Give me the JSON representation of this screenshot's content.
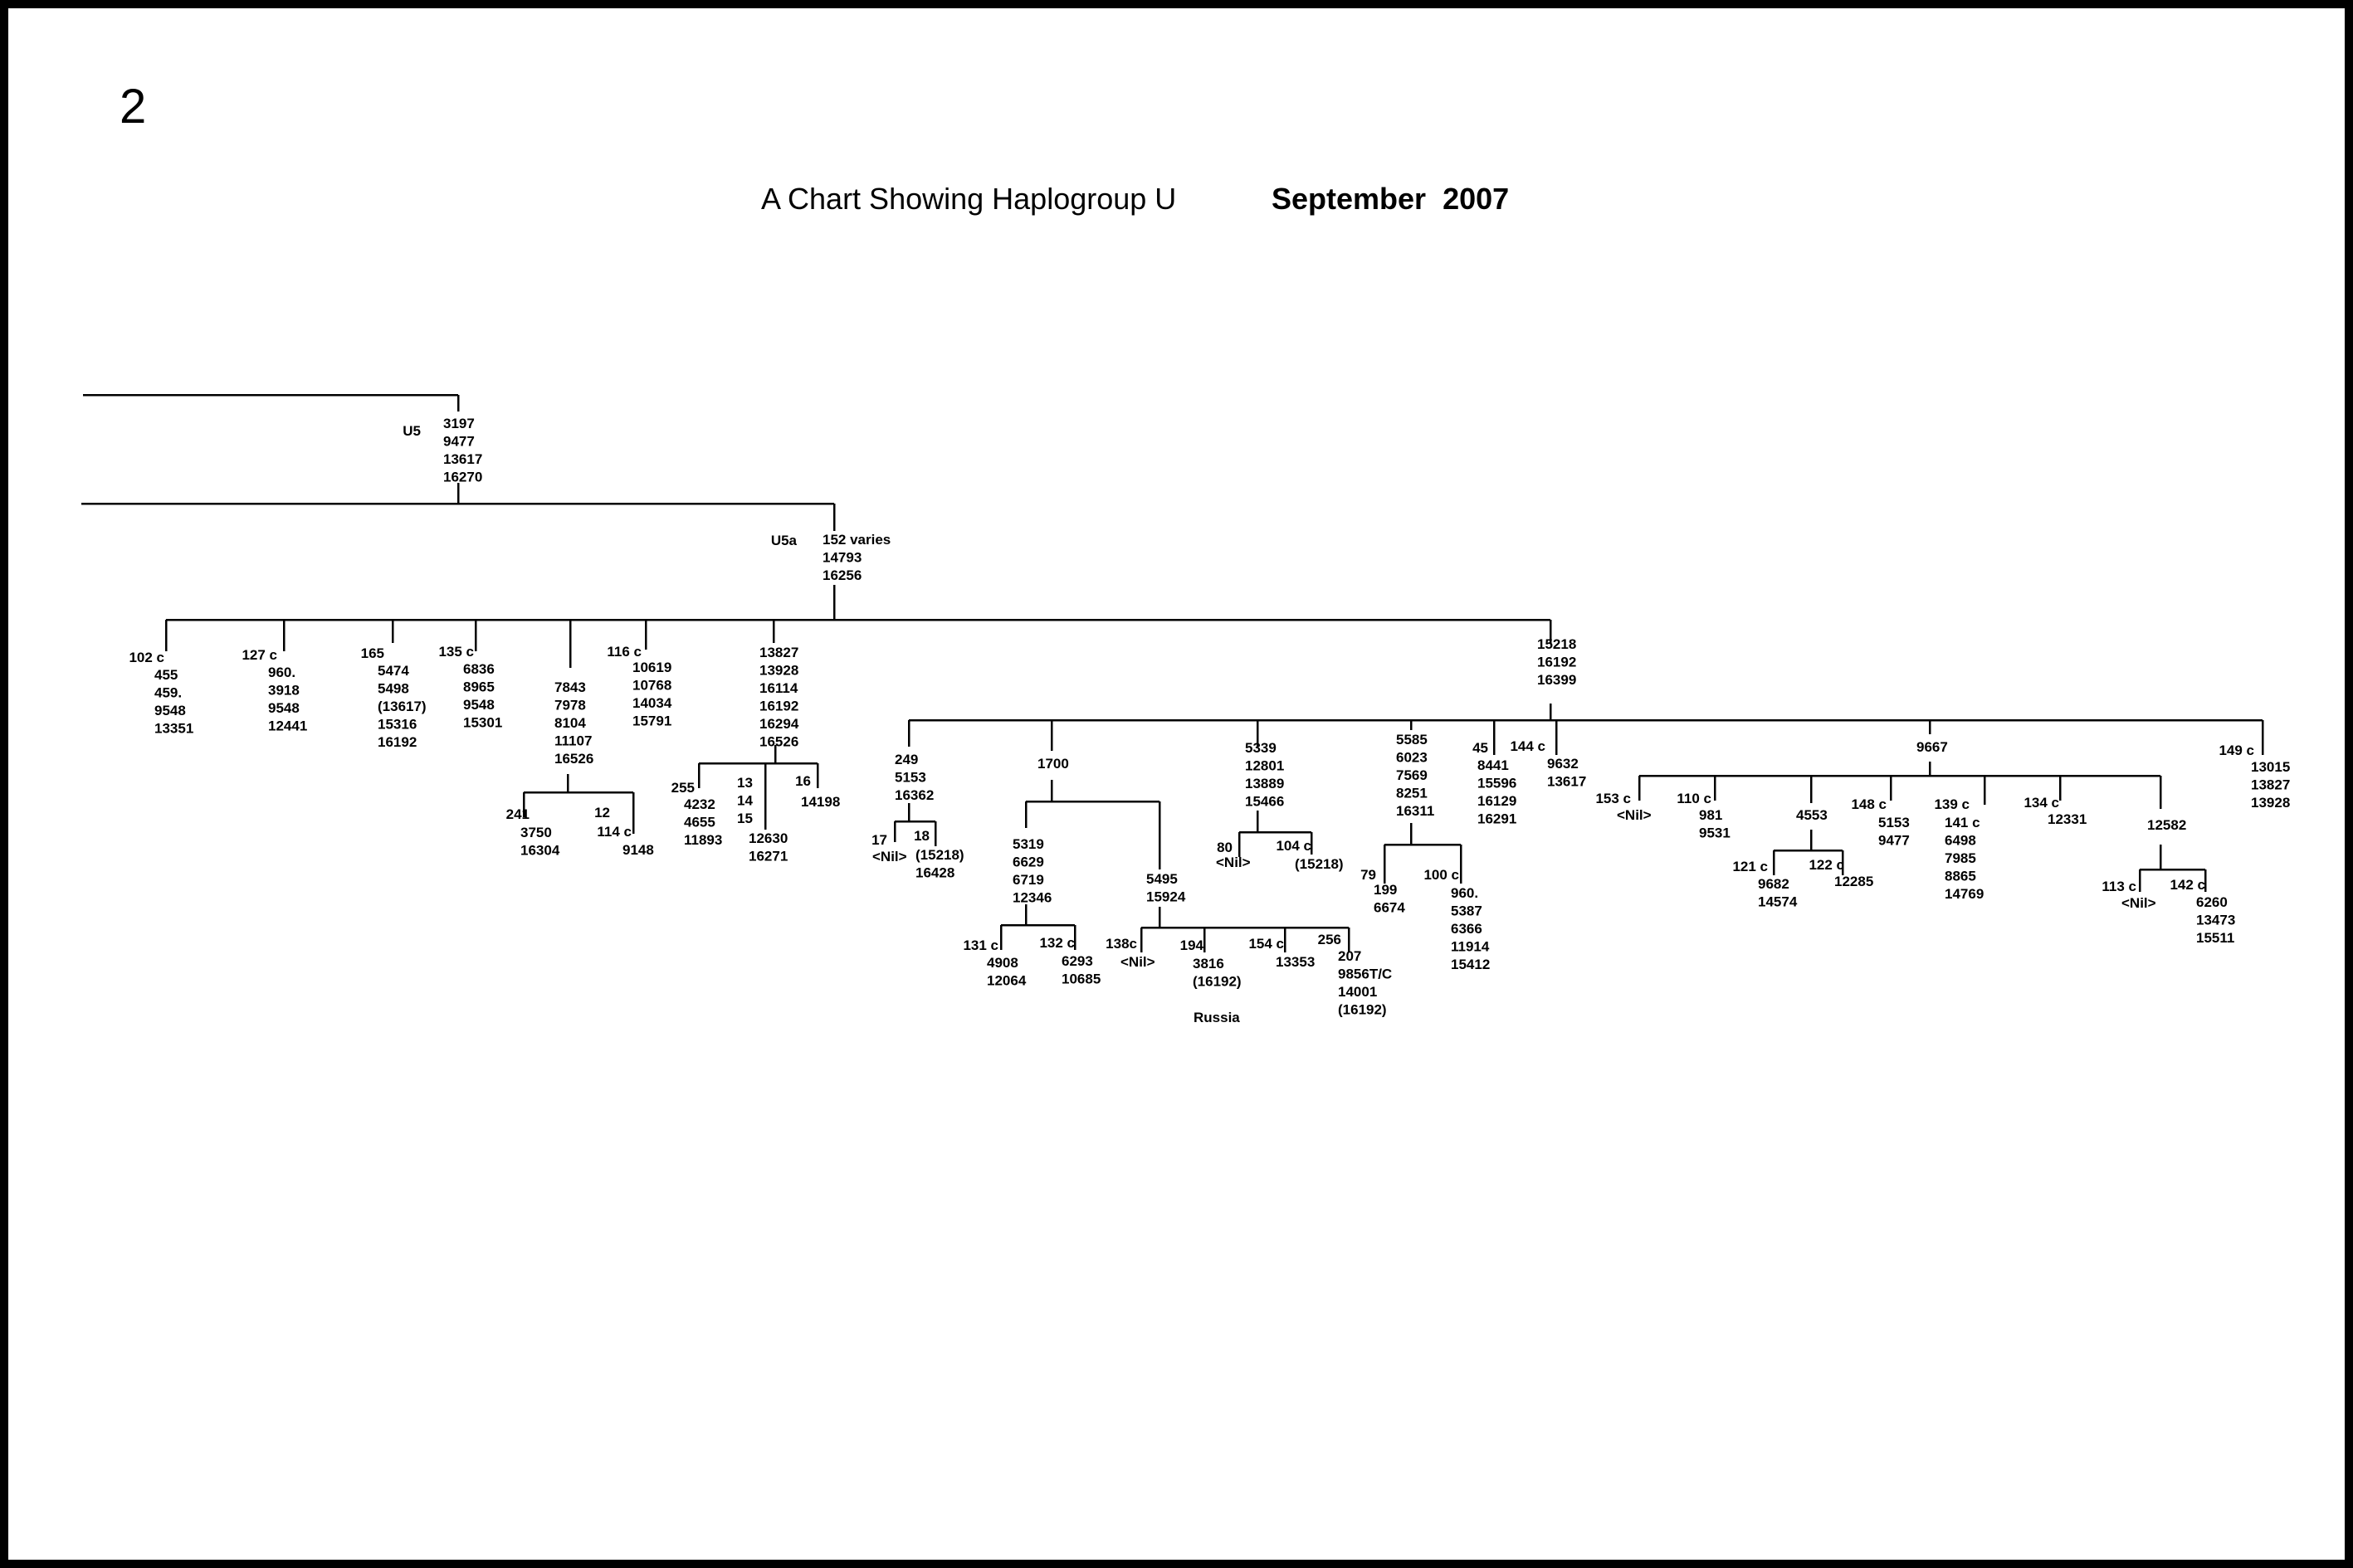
{
  "page_number": "2",
  "title": "A Chart Showing Haplogroup U",
  "date": "September  2007",
  "tree": {
    "u5": {
      "label": "U5",
      "mutations": [
        "3197",
        "9477",
        "13617",
        "16270"
      ]
    },
    "u5a": {
      "label": "U5a",
      "mutations": [
        "152  varies",
        "14793",
        "16256"
      ]
    },
    "branches": {
      "b102": {
        "label": "102 c",
        "mutations": [
          "455",
          "459.",
          "9548",
          "13351"
        ]
      },
      "b127": {
        "label": "127 c",
        "mutations": [
          "960.",
          "3918",
          "9548",
          "12441"
        ]
      },
      "b165": {
        "label": "165",
        "mutations": [
          "5474",
          "5498",
          "(13617)",
          "15316",
          "16192"
        ]
      },
      "b135": {
        "label": "135 c",
        "mutations": [
          "6836",
          "8965",
          "9548",
          "15301"
        ]
      },
      "b7843": {
        "mutations": [
          "7843",
          "7978",
          "8104",
          "11107",
          "16526"
        ]
      },
      "b241": {
        "label": "241",
        "mutations": [
          "3750",
          "16304"
        ]
      },
      "b12": {
        "label": "12"
      },
      "b114": {
        "label": "114 c",
        "mutations": [
          "9148"
        ]
      },
      "b116": {
        "label": "116 c",
        "mutations": [
          "10619",
          "10768",
          "14034",
          "15791"
        ]
      },
      "b13827": {
        "mutations": [
          "13827",
          "13928",
          "16114",
          "16192",
          "16294",
          "16526"
        ]
      },
      "b255": {
        "label": "255",
        "mutations": [
          "4232",
          "4655",
          "11893"
        ]
      },
      "b13": {
        "mutations": [
          "13",
          "14",
          "15"
        ],
        "submutations": [
          "12630",
          "16271"
        ]
      },
      "b16": {
        "label": "16",
        "mutations": [
          "14198"
        ]
      },
      "b15218": {
        "mutations": [
          "15218",
          "16192",
          "16399"
        ]
      },
      "b249": {
        "mutations": [
          "249",
          "5153",
          "16362"
        ]
      },
      "b17": {
        "label": "17",
        "mutations": [
          "<Nil>"
        ]
      },
      "b18": {
        "label": "18",
        "mutations": [
          "(15218)",
          "16428"
        ]
      },
      "b1700": {
        "mutations": [
          "1700"
        ]
      },
      "b5319": {
        "mutations": [
          "5319",
          "6629",
          "6719",
          "12346"
        ]
      },
      "b131": {
        "label": "131 c",
        "mutations": [
          "4908",
          "12064"
        ]
      },
      "b132": {
        "label": "132 c",
        "mutations": [
          "6293",
          "10685"
        ]
      },
      "b5495": {
        "mutations": [
          "5495",
          "15924"
        ]
      },
      "b138": {
        "label": "138c",
        "mutations": [
          "<Nil>"
        ]
      },
      "b194": {
        "label": "194",
        "mutations": [
          "3816",
          "(16192)"
        ]
      },
      "b154": {
        "label": "154 c",
        "mutations": [
          "13353"
        ]
      },
      "b256": {
        "label": "256",
        "mutations": [
          "207",
          "9856T/C",
          "14001",
          "(16192)"
        ]
      },
      "russia": {
        "label": "Russia"
      },
      "b5339": {
        "mutations": [
          "5339",
          "12801",
          "13889",
          "15466"
        ]
      },
      "b80": {
        "label": "80",
        "mutations": [
          "<Nil>"
        ]
      },
      "b104": {
        "label": "104 c",
        "mutations": [
          "(15218)"
        ]
      },
      "b5585": {
        "mutations": [
          "5585",
          "6023",
          "7569",
          "8251",
          "16311"
        ]
      },
      "b79": {
        "label": "79",
        "mutations": [
          "199",
          "6674"
        ]
      },
      "b100": {
        "label": "100 c",
        "mutations": [
          "960.",
          "5387",
          "6366",
          "11914",
          "15412"
        ]
      },
      "b45": {
        "label": "45",
        "mutations": [
          "8441",
          "15596",
          "16129",
          "16291"
        ]
      },
      "b144": {
        "label": "144 c",
        "mutations": [
          "9632",
          "13617"
        ]
      },
      "b9667": {
        "mutations": [
          "9667"
        ]
      },
      "b153": {
        "label": "153 c",
        "mutations": [
          "<Nil>"
        ]
      },
      "b110": {
        "label": "110 c",
        "mutations": [
          "981",
          "9531"
        ]
      },
      "b4553": {
        "mutations": [
          "4553"
        ]
      },
      "b121": {
        "label": "121 c",
        "mutations": [
          "9682",
          "14574"
        ]
      },
      "b122": {
        "label": "122 c",
        "mutations": [
          "12285"
        ]
      },
      "b148": {
        "label": "148 c",
        "mutations": [
          "5153",
          "9477"
        ]
      },
      "b139": {
        "label": "139 c",
        "mutations": [
          "141 c",
          "6498",
          "7985",
          "8865",
          "14769"
        ]
      },
      "b134": {
        "label": "134 c",
        "mutations": [
          "12331"
        ]
      },
      "b12582": {
        "mutations": [
          "12582"
        ]
      },
      "b113": {
        "label": "113 c",
        "mutations": [
          "<Nil>"
        ]
      },
      "b142": {
        "label": "142 c",
        "mutations": [
          "6260",
          "13473",
          "15511"
        ]
      },
      "b149": {
        "label": "149 c",
        "mutations": [
          "13015",
          "13827",
          "13928"
        ]
      }
    }
  }
}
